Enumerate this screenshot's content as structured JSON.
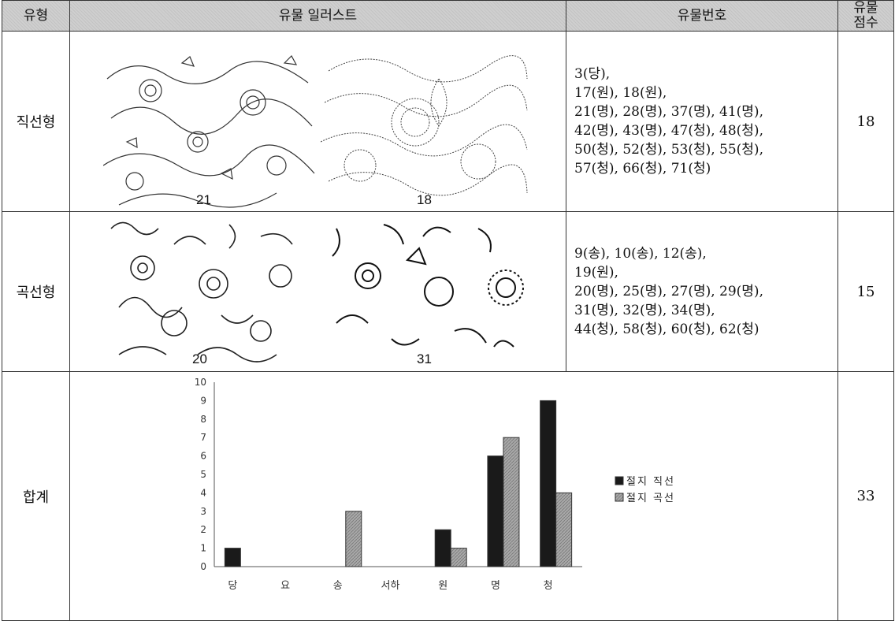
{
  "header": {
    "type": "유형",
    "illustration": "유물 일러스트",
    "artifact_numbers": "유물번호",
    "count_line1": "유물",
    "count_line2": "점수"
  },
  "rows": [
    {
      "type": "직선형",
      "captions": [
        "21",
        "18"
      ],
      "id_lines": [
        "3(당),",
        "17(원), 18(원),",
        "21(명), 28(명), 37(명), 41(명),",
        "42(명), 43(명), 47(청), 48(청),",
        "50(청), 52(청), 53(청), 55(청),",
        "57(청), 66(청), 71(청)"
      ],
      "count": "18"
    },
    {
      "type": "곡선형",
      "captions": [
        "20",
        "31"
      ],
      "id_lines": [
        "9(송), 10(송), 12(송),",
        "19(원),",
        "20(명), 25(명), 27(명), 29(명),",
        "31(명), 32(명), 34(명),",
        "44(청), 58(청), 60(청), 62(청)"
      ],
      "count": "15"
    }
  ],
  "total": {
    "label": "합계",
    "count": "33"
  },
  "chart_data": {
    "type": "bar",
    "categories": [
      "당",
      "요",
      "송",
      "서하",
      "원",
      "명",
      "청"
    ],
    "series": [
      {
        "name": "절지 직선",
        "values": [
          1,
          0,
          0,
          0,
          2,
          6,
          9
        ],
        "color": "#1a1a1a"
      },
      {
        "name": "절지 곡선",
        "values": [
          0,
          0,
          3,
          0,
          1,
          7,
          4
        ],
        "color": "#a8a8a8"
      }
    ],
    "yticks": [
      "0",
      "1",
      "2",
      "3",
      "4",
      "5",
      "6",
      "7",
      "8",
      "9",
      "10"
    ],
    "ylim": [
      0,
      10
    ],
    "legend_position": "right",
    "grid": false
  }
}
